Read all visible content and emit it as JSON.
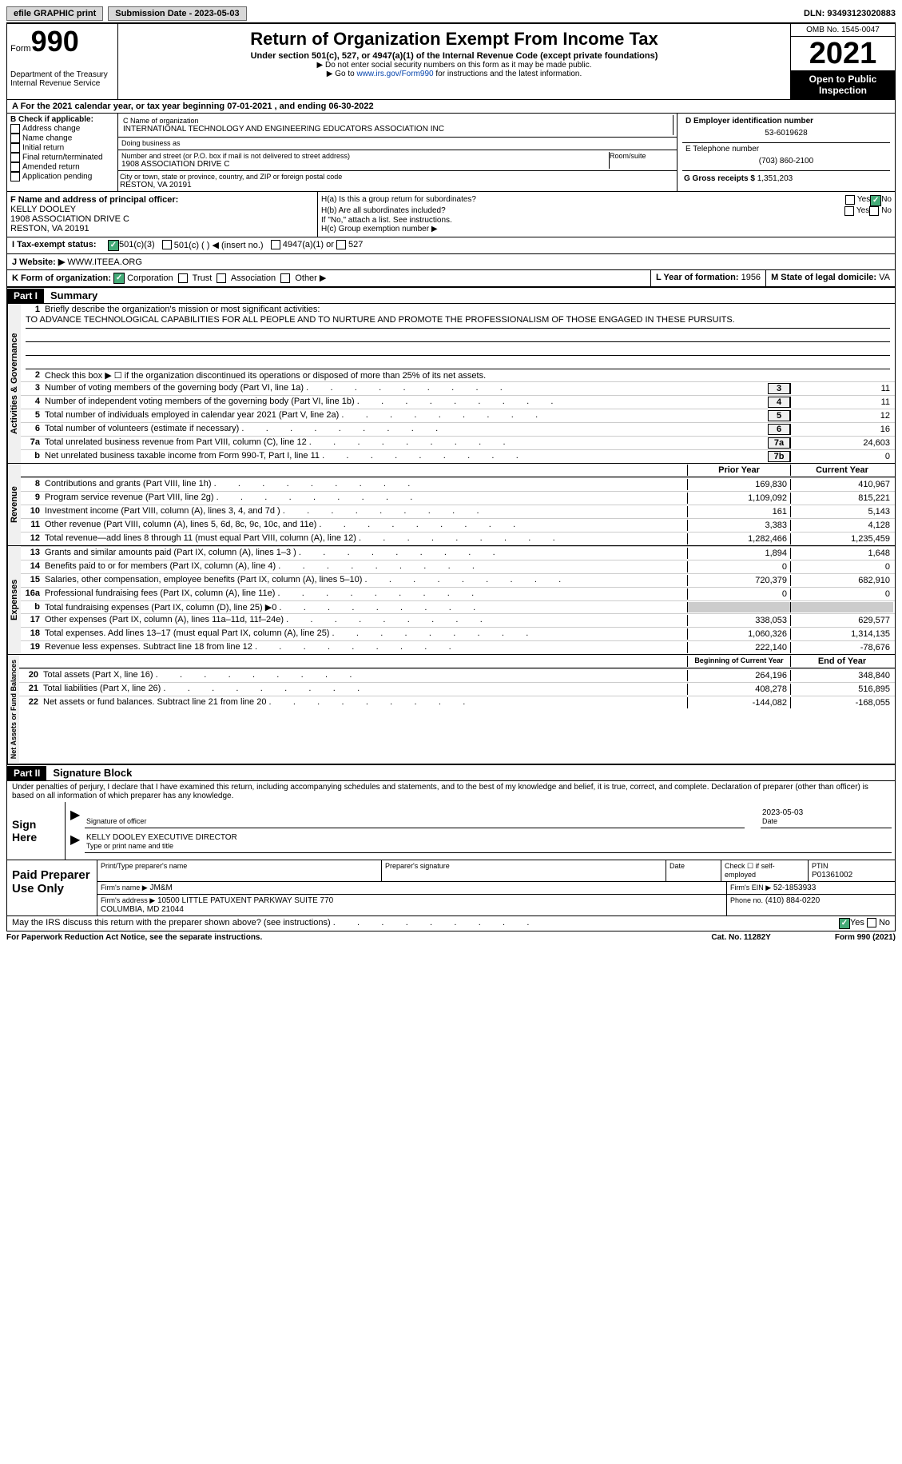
{
  "topbar": {
    "efile": "efile GRAPHIC print",
    "subdate_lbl": "Submission Date - 2023-05-03",
    "dln": "DLN: 93493123020883"
  },
  "hdr": {
    "form": "Form",
    "no": "990",
    "title": "Return of Organization Exempt From Income Tax",
    "sub": "Under section 501(c), 527, or 4947(a)(1) of the Internal Revenue Code (except private foundations)",
    "note1": "▶ Do not enter social security numbers on this form as it may be made public.",
    "note2": "▶ Go to ",
    "link": "www.irs.gov/Form990",
    "note3": " for instructions and the latest information.",
    "dept": "Department of the Treasury",
    "irs": "Internal Revenue Service",
    "omb": "OMB No. 1545-0047",
    "year": "2021",
    "pub": "Open to Public Inspection"
  },
  "cy": "A For the 2021 calendar year, or tax year beginning 07-01-2021   , and ending 06-30-2022",
  "boxB": {
    "hdr": "B Check if applicable:",
    "items": [
      "Address change",
      "Name change",
      "Initial return",
      "Final return/terminated",
      "Amended return",
      "Application pending"
    ]
  },
  "boxC": {
    "lbl": "C Name of organization",
    "name": "INTERNATIONAL TECHNOLOGY AND ENGINEERING EDUCATORS ASSOCIATION INC",
    "dba_lbl": "Doing business as",
    "addr_lbl": "Number and street (or P.O. box if mail is not delivered to street address)",
    "room_lbl": "Room/suite",
    "addr": "1908 ASSOCIATION DRIVE C",
    "city_lbl": "City or town, state or province, country, and ZIP or foreign postal code",
    "city": "RESTON, VA  20191"
  },
  "boxD": {
    "lbl": "D Employer identification number",
    "ein": "53-6019628"
  },
  "boxE": {
    "lbl": "E Telephone number",
    "tel": "(703) 860-2100"
  },
  "boxG": {
    "lbl": "G Gross receipts $",
    "val": "1,351,203"
  },
  "boxF": {
    "lbl": "F  Name and address of principal officer:",
    "name": "KELLY DOOLEY",
    "addr1": "1908 ASSOCIATION DRIVE C",
    "addr2": "RESTON, VA  20191"
  },
  "boxH": {
    "a": "H(a)  Is this a group return for subordinates?",
    "b": "H(b)  Are all subordinates included?",
    "note": "If \"No,\" attach a list. See instructions.",
    "c": "H(c)  Group exemption number ▶",
    "yes": "Yes",
    "no": "No"
  },
  "boxI": {
    "lbl": "I  Tax-exempt status:",
    "o1": "501(c)(3)",
    "o2": "501(c) (  ) ◀ (insert no.)",
    "o3": "4947(a)(1) or",
    "o4": "527"
  },
  "boxJ": {
    "lbl": "J  Website: ▶",
    "val": "WWW.ITEEA.ORG"
  },
  "boxK": {
    "lbl": "K Form of organization:",
    "o": [
      "Corporation",
      "Trust",
      "Association",
      "Other ▶"
    ]
  },
  "boxL": {
    "lbl": "L Year of formation: ",
    "val": "1956"
  },
  "boxM": {
    "lbl": "M State of legal domicile: ",
    "val": "VA"
  },
  "p1": {
    "hdr": "Part I",
    "title": "Summary",
    "side1": "Activities & Governance",
    "side2": "Revenue",
    "side3": "Expenses",
    "side4": "Net Assets or Fund Balances",
    "l1": "Briefly describe the organization's mission or most significant activities:",
    "mission": "TO ADVANCE TECHNOLOGICAL CAPABILITIES FOR ALL PEOPLE AND TO NURTURE AND PROMOTE THE PROFESSIONALISM OF THOSE ENGAGED IN THESE PURSUITS.",
    "l2": "Check this box ▶ ☐  if the organization discontinued its operations or disposed of more than 25% of its net assets.",
    "rows_ag": [
      {
        "n": "3",
        "t": "Number of voting members of the governing body (Part VI, line 1a)",
        "b": "3",
        "v": "11"
      },
      {
        "n": "4",
        "t": "Number of independent voting members of the governing body (Part VI, line 1b)",
        "b": "4",
        "v": "11"
      },
      {
        "n": "5",
        "t": "Total number of individuals employed in calendar year 2021 (Part V, line 2a)",
        "b": "5",
        "v": "12"
      },
      {
        "n": "6",
        "t": "Total number of volunteers (estimate if necessary)",
        "b": "6",
        "v": "16"
      },
      {
        "n": "7a",
        "t": "Total unrelated business revenue from Part VIII, column (C), line 12",
        "b": "7a",
        "v": "24,603"
      },
      {
        "n": "b",
        "t": "Net unrelated business taxable income from Form 990-T, Part I, line 11",
        "b": "7b",
        "v": "0"
      }
    ],
    "col_py": "Prior Year",
    "col_cy": "Current Year",
    "rows_rev": [
      {
        "n": "8",
        "t": "Contributions and grants (Part VIII, line 1h)",
        "py": "169,830",
        "cy": "410,967"
      },
      {
        "n": "9",
        "t": "Program service revenue (Part VIII, line 2g)",
        "py": "1,109,092",
        "cy": "815,221"
      },
      {
        "n": "10",
        "t": "Investment income (Part VIII, column (A), lines 3, 4, and 7d )",
        "py": "161",
        "cy": "5,143"
      },
      {
        "n": "11",
        "t": "Other revenue (Part VIII, column (A), lines 5, 6d, 8c, 9c, 10c, and 11e)",
        "py": "3,383",
        "cy": "4,128"
      },
      {
        "n": "12",
        "t": "Total revenue—add lines 8 through 11 (must equal Part VIII, column (A), line 12)",
        "py": "1,282,466",
        "cy": "1,235,459"
      }
    ],
    "rows_exp": [
      {
        "n": "13",
        "t": "Grants and similar amounts paid (Part IX, column (A), lines 1–3 )",
        "py": "1,894",
        "cy": "1,648"
      },
      {
        "n": "14",
        "t": "Benefits paid to or for members (Part IX, column (A), line 4)",
        "py": "0",
        "cy": "0"
      },
      {
        "n": "15",
        "t": "Salaries, other compensation, employee benefits (Part IX, column (A), lines 5–10)",
        "py": "720,379",
        "cy": "682,910"
      },
      {
        "n": "16a",
        "t": "Professional fundraising fees (Part IX, column (A), line 11e)",
        "py": "0",
        "cy": "0"
      },
      {
        "n": "b",
        "t": "Total fundraising expenses (Part IX, column (D), line 25) ▶0",
        "py": "",
        "cy": "",
        "grey": true
      },
      {
        "n": "17",
        "t": "Other expenses (Part IX, column (A), lines 11a–11d, 11f–24e)",
        "py": "338,053",
        "cy": "629,577"
      },
      {
        "n": "18",
        "t": "Total expenses. Add lines 13–17 (must equal Part IX, column (A), line 25)",
        "py": "1,060,326",
        "cy": "1,314,135"
      },
      {
        "n": "19",
        "t": "Revenue less expenses. Subtract line 18 from line 12",
        "py": "222,140",
        "cy": "-78,676"
      }
    ],
    "col_boy": "Beginning of Current Year",
    "col_eoy": "End of Year",
    "rows_na": [
      {
        "n": "20",
        "t": "Total assets (Part X, line 16)",
        "py": "264,196",
        "cy": "348,840"
      },
      {
        "n": "21",
        "t": "Total liabilities (Part X, line 26)",
        "py": "408,278",
        "cy": "516,895"
      },
      {
        "n": "22",
        "t": "Net assets or fund balances. Subtract line 21 from line 20",
        "py": "-144,082",
        "cy": "-168,055"
      }
    ]
  },
  "p2": {
    "hdr": "Part II",
    "title": "Signature Block",
    "decl": "Under penalties of perjury, I declare that I have examined this return, including accompanying schedules and statements, and to the best of my knowledge and belief, it is true, correct, and complete. Declaration of preparer (other than officer) is based on all information of which preparer has any knowledge.",
    "sign": "Sign Here",
    "sig_lbl": "Signature of officer",
    "date_lbl": "Date",
    "date": "2023-05-03",
    "name": "KELLY DOOLEY  EXECUTIVE DIRECTOR",
    "name_lbl": "Type or print name and title",
    "paid": "Paid Preparer Use Only",
    "pp_name_lbl": "Print/Type preparer's name",
    "pp_sig_lbl": "Preparer's signature",
    "pp_date": "Date",
    "pp_chk": "Check ☐ if self-employed",
    "ptin_lbl": "PTIN",
    "ptin": "P01361002",
    "firm_lbl": "Firm's name    ▶",
    "firm": "JM&M",
    "fein_lbl": "Firm's EIN ▶",
    "fein": "52-1853933",
    "faddr_lbl": "Firm's address ▶",
    "faddr": "10500 LITTLE PATUXENT PARKWAY SUITE 770\nCOLUMBIA, MD  21044",
    "phone_lbl": "Phone no.",
    "phone": "(410) 884-0220",
    "discuss": "May the IRS discuss this return with the preparer shown above? (see instructions)"
  },
  "foot": {
    "l": "For Paperwork Reduction Act Notice, see the separate instructions.",
    "c": "Cat. No. 11282Y",
    "r": "Form 990 (2021)"
  }
}
